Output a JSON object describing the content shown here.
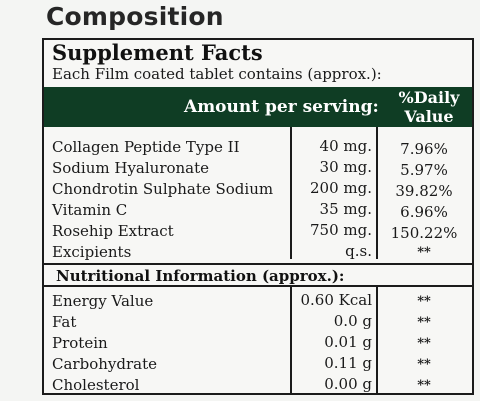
{
  "heading": "Composition",
  "facts": {
    "title": "Supplement Facts",
    "subtitle": "Each Film coated tablet contains (approx.):",
    "header_amount": "Amount per serving:",
    "header_dv_line1": "%Daily",
    "header_dv_line2": "Value",
    "rows": [
      {
        "name": "Collagen Peptide Type II",
        "amount": "40 mg.",
        "dv": "7.96%"
      },
      {
        "name": "Sodium Hyaluronate",
        "amount": "30 mg.",
        "dv": "5.97%"
      },
      {
        "name": "Chondrotin Sulphate Sodium",
        "amount": "200 mg.",
        "dv": "39.82%"
      },
      {
        "name": "Vitamin C",
        "amount": "35 mg.",
        "dv": "6.96%"
      },
      {
        "name": "Rosehip Extract",
        "amount": "750 mg.",
        "dv": "150.22%"
      },
      {
        "name": "Excipients",
        "amount": "q.s.",
        "dv": "**"
      }
    ]
  },
  "nutrition": {
    "title": "Nutritional Information (approx.):",
    "rows": [
      {
        "name": "Energy Value",
        "amount": "0.60 Kcal",
        "dv": "**"
      },
      {
        "name": "Fat",
        "amount": "0.0 g",
        "dv": "**"
      },
      {
        "name": "Protein",
        "amount": "0.01 g",
        "dv": "**"
      },
      {
        "name": "Carbohydrate",
        "amount": "0.11 g",
        "dv": "**"
      },
      {
        "name": "Cholesterol",
        "amount": "0.00 g",
        "dv": "**"
      }
    ]
  }
}
